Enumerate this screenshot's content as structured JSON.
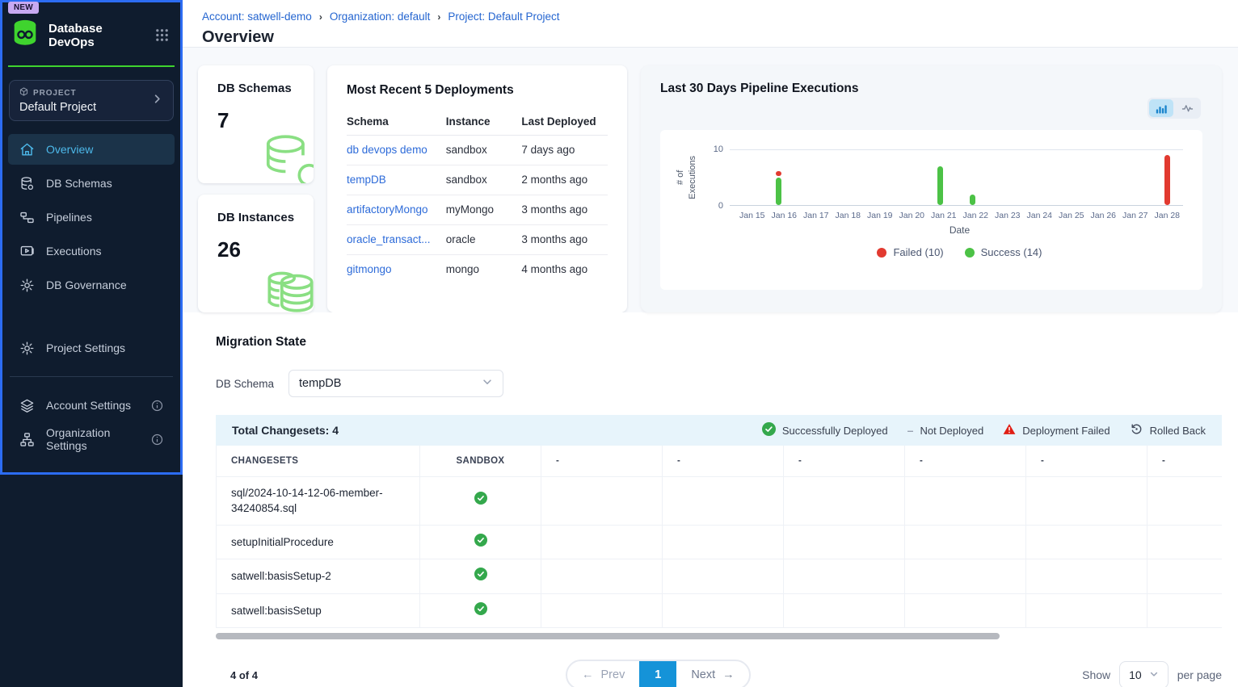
{
  "colors": {
    "brand_green": "#3fd42e",
    "sidebar_bg": "#0f1c2e",
    "focus_ring_blue": "#2c6cf2",
    "link_blue": "#2d6bd9",
    "active_nav_cyan": "#4db9ea",
    "success_green": "#4cc246",
    "failed_red": "#e23a30",
    "pagination_blue": "#1593d8",
    "changesets_bar_blue": "#e7f4fb"
  },
  "sidebar": {
    "badge": "NEW",
    "app_title": "Database DevOps",
    "project_label": "PROJECT",
    "project_name": "Default Project",
    "nav": [
      {
        "label": "Overview",
        "icon": "home-icon",
        "active": true
      },
      {
        "label": "DB Schemas",
        "icon": "database-icon",
        "active": false
      },
      {
        "label": "Pipelines",
        "icon": "pipeline-icon",
        "active": false
      },
      {
        "label": "Executions",
        "icon": "play-screen-icon",
        "active": false
      },
      {
        "label": "DB Governance",
        "icon": "gear-icon",
        "active": false
      }
    ],
    "secondary_nav": [
      {
        "label": "Project Settings",
        "icon": "gear-icon"
      }
    ],
    "tertiary_nav": [
      {
        "label": "Account Settings",
        "icon": "layers-icon",
        "has_info": true
      },
      {
        "label": "Organization Settings",
        "icon": "org-chart-icon",
        "has_info": true
      }
    ]
  },
  "header": {
    "breadcrumb": [
      "Account: satwell-demo",
      "Organization: default",
      "Project: Default Project"
    ],
    "title": "Overview"
  },
  "stats": [
    {
      "label": "DB Schemas",
      "value": "7",
      "icon": "database-outline-icon"
    },
    {
      "label": "DB Instances",
      "value": "26",
      "icon": "database-stack-outline-icon"
    }
  ],
  "deployments": {
    "title": "Most Recent 5 Deployments",
    "columns": [
      "Schema",
      "Instance",
      "Last Deployed"
    ],
    "rows": [
      {
        "schema": "db devops demo",
        "instance": "sandbox",
        "last_deployed": "7 days ago"
      },
      {
        "schema": "tempDB",
        "instance": "sandbox",
        "last_deployed": "2 months ago"
      },
      {
        "schema": "artifactoryMongo",
        "instance": "myMongo",
        "last_deployed": "3 months ago"
      },
      {
        "schema": "oracle_transact...",
        "instance": "oracle",
        "last_deployed": "3 months ago"
      },
      {
        "schema": "gitmongo",
        "instance": "mongo",
        "last_deployed": "4 months ago"
      }
    ]
  },
  "chart_data": {
    "type": "bar",
    "stacked": true,
    "title": "Last 30 Days Pipeline Executions",
    "xlabel": "Date",
    "ylabel": "# of Executions",
    "ylabel_lines": [
      "# of",
      "Executions"
    ],
    "ylim": [
      0,
      10
    ],
    "yticks": [
      0,
      10
    ],
    "grid": "horizontal-top-only",
    "legend_position": "bottom-center",
    "categories": [
      "Jan 15",
      "Jan 16",
      "Jan 17",
      "Jan 18",
      "Jan 19",
      "Jan 20",
      "Jan 21",
      "Jan 22",
      "Jan 23",
      "Jan 24",
      "Jan 25",
      "Jan 26",
      "Jan 27",
      "Jan 28"
    ],
    "series": [
      {
        "name": "Failed",
        "color": "#e23a30",
        "values": [
          0,
          1,
          0,
          0,
          0,
          0,
          0,
          0,
          0,
          0,
          0,
          0,
          0,
          9
        ]
      },
      {
        "name": "Success",
        "color": "#4cc246",
        "values": [
          0,
          5,
          0,
          0,
          0,
          0,
          7,
          2,
          0,
          0,
          0,
          0,
          0,
          0
        ]
      }
    ],
    "legend": [
      {
        "label": "Failed (10)",
        "color": "#e23a30"
      },
      {
        "label": "Success (14)",
        "color": "#4cc246"
      }
    ]
  },
  "migration": {
    "title": "Migration State",
    "db_schema_label": "DB Schema",
    "db_schema_value": "tempDB",
    "total_label": "Total Changesets: 4",
    "status_legend": [
      {
        "label": "Successfully Deployed",
        "icon": "check-circle-icon"
      },
      {
        "label": "Not Deployed",
        "icon": "dash-icon"
      },
      {
        "label": "Deployment Failed",
        "icon": "warning-triangle-icon"
      },
      {
        "label": "Rolled Back",
        "icon": "rollback-icon"
      }
    ],
    "columns": [
      "CHANGESETS",
      "SANDBOX",
      "-",
      "-",
      "-",
      "-",
      "-",
      "-"
    ],
    "rows": [
      {
        "name": "sql/2024-10-14-12-06-member-34240854.sql",
        "sandbox": "success"
      },
      {
        "name": "setupInitialProcedure",
        "sandbox": "success"
      },
      {
        "name": "satwell:basisSetup-2",
        "sandbox": "success"
      },
      {
        "name": "satwell:basisSetup",
        "sandbox": "success"
      }
    ],
    "footer": {
      "count": "4 of 4",
      "prev_label": "Prev",
      "page": "1",
      "next_label": "Next",
      "show_label": "Show",
      "page_size": "10",
      "per_page_label": "per page"
    }
  }
}
